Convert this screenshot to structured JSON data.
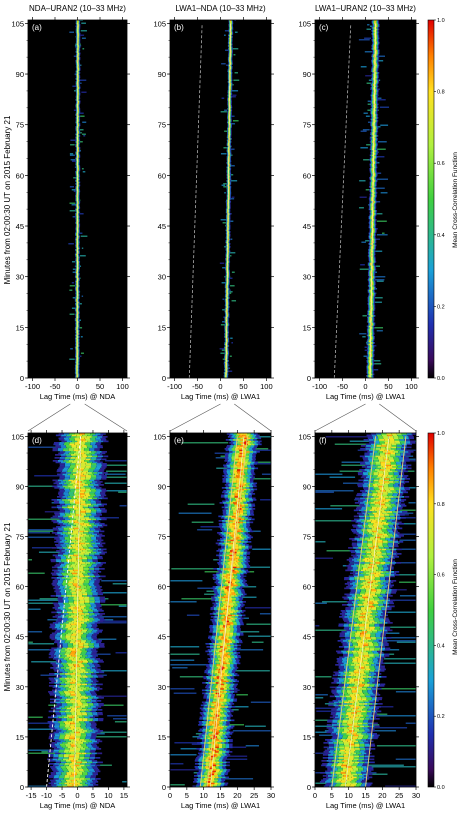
{
  "figure": {
    "ylabel": "Minutes from 02:00:30 UT on 2015 February 21",
    "colorbar_label": "Mean Cross-Correlation Function",
    "colorbar_ticks": [
      "0.0",
      "0.2",
      "0.4",
      "0.6",
      "0.8",
      "1.0"
    ],
    "colormap": [
      "#000000",
      "#3a0a5a",
      "#2030b0",
      "#1aa0d8",
      "#40d040",
      "#b0f040",
      "#ffe020",
      "#ff8000",
      "#e00000"
    ]
  },
  "chart_data": [
    {
      "type": "heatmap",
      "id": "a",
      "panel_label": "(a)",
      "title": "NDA–URAN2 (10–33 MHz)",
      "xlabel": "Lag Time (ms) @ NDA",
      "xlim": [
        -110,
        110
      ],
      "ylim": [
        0,
        106
      ],
      "xticks": [
        "-100",
        "-50",
        "0",
        "50",
        "100"
      ],
      "yticks": [
        "0",
        "15",
        "30",
        "45",
        "60",
        "75",
        "90",
        "105"
      ],
      "ridge": {
        "lag_at_0": -1,
        "lag_at_105": 1,
        "half_width": 3,
        "peak": 0.88
      },
      "ghost": null
    },
    {
      "type": "heatmap",
      "id": "b",
      "panel_label": "(b)",
      "title": "LWA1–NDA (10–33 MHz)",
      "xlabel": "Lag Time (ms) @ LWA1",
      "xlim": [
        -110,
        110
      ],
      "ylim": [
        0,
        106
      ],
      "xticks": [
        "-100",
        "-50",
        "0",
        "50",
        "100"
      ],
      "yticks": [
        "0",
        "15",
        "30",
        "45",
        "60",
        "75",
        "90",
        "105"
      ],
      "ridge": {
        "lag_at_0": 12,
        "lag_at_105": 22,
        "half_width": 3,
        "peak": 0.9
      },
      "ghost": {
        "lag_at_0": -68,
        "lag_at_105": -40
      }
    },
    {
      "type": "heatmap",
      "id": "c",
      "panel_label": "(c)",
      "title": "LWA1–URAN2 (10–33 MHz)",
      "xlabel": "Lag Time (ms) @ LWA1",
      "xlim": [
        -110,
        110
      ],
      "ylim": [
        0,
        106
      ],
      "xticks": [
        "-100",
        "-50",
        "0",
        "50",
        "100"
      ],
      "yticks": [
        "0",
        "15",
        "30",
        "45",
        "60",
        "75",
        "90",
        "105"
      ],
      "ridge": {
        "lag_at_0": 10,
        "lag_at_105": 22,
        "half_width": 5,
        "peak": 0.85
      },
      "ghost": {
        "lag_at_0": -68,
        "lag_at_105": -32
      }
    },
    {
      "type": "heatmap",
      "id": "d",
      "panel_label": "(d)",
      "title": "",
      "xlabel": "Lag Time (ms) @ NDA",
      "xlim": [
        -16,
        16
      ],
      "ylim": [
        0,
        106
      ],
      "xticks": [
        "-15",
        "-10",
        "-5",
        "0",
        "5",
        "10",
        "15"
      ],
      "yticks": [
        "0",
        "15",
        "30",
        "45",
        "60",
        "75",
        "90",
        "105"
      ],
      "ridge": {
        "lag_at_0": -1,
        "lag_at_105": 1,
        "half_width": 5,
        "peak": 0.82
      },
      "fit_lines": [
        {
          "lag_at_0": -10,
          "lag_at_105": 1
        }
      ],
      "ghost": null
    },
    {
      "type": "heatmap",
      "id": "e",
      "panel_label": "(e)",
      "title": "",
      "xlabel": "Lag Time (ms) @ LWA1",
      "xlim": [
        0,
        30
      ],
      "ylim": [
        0,
        106
      ],
      "xticks": [
        "0",
        "5",
        "10",
        "15",
        "20",
        "25",
        "30"
      ],
      "yticks": [
        "0",
        "15",
        "30",
        "45",
        "60",
        "75",
        "90",
        "105"
      ],
      "ridge": {
        "lag_at_0": 12,
        "lag_at_105": 22,
        "half_width": 3,
        "peak": 0.93
      },
      "fit_lines": [
        {
          "lag_at_0": 9,
          "lag_at_105": 20
        },
        {
          "lag_at_0": 11,
          "lag_at_105": 23
        }
      ],
      "ghost": null
    },
    {
      "type": "heatmap",
      "id": "f",
      "panel_label": "(f)",
      "title": "",
      "xlabel": "Lag Time (ms) @ LWA1",
      "xlim": [
        0,
        30
      ],
      "ylim": [
        0,
        106
      ],
      "xticks": [
        "0",
        "5",
        "10",
        "15",
        "20",
        "25",
        "30"
      ],
      "yticks": [
        "0",
        "15",
        "30",
        "45",
        "60",
        "75",
        "90",
        "105"
      ],
      "ridge": {
        "lag_at_0": 9,
        "lag_at_105": 22,
        "half_width": 4.5,
        "peak": 0.84
      },
      "fit_lines": [
        {
          "lag_at_0": 5,
          "lag_at_105": 18
        },
        {
          "lag_at_0": 15,
          "lag_at_105": 27
        }
      ],
      "ghost": null
    }
  ]
}
